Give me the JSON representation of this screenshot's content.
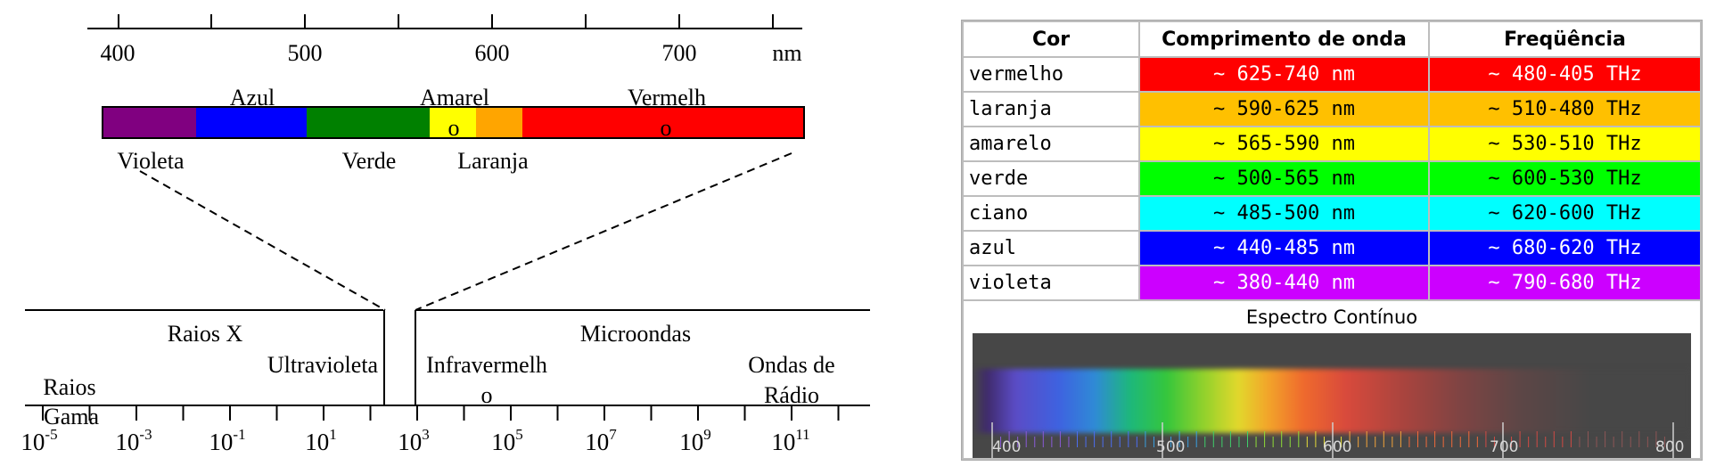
{
  "visible_scale": {
    "ticks": [
      "400",
      "500",
      "600",
      "700"
    ],
    "unit": "nm"
  },
  "color_bar": {
    "top_labels": {
      "azul": "Azul",
      "amarelo": "Amarel",
      "vermelho": "Vermelh"
    },
    "inner_labels": {
      "amarelo_o": "o",
      "vermelho_o": "o"
    },
    "bottom_labels": {
      "violeta": "Violeta",
      "verde": "Verde",
      "laranja": "Laranja"
    },
    "segments": [
      {
        "name": "violeta",
        "color": "#800080"
      },
      {
        "name": "azul",
        "color": "#0000ff"
      },
      {
        "name": "verde",
        "color": "#008000"
      },
      {
        "name": "amarelo",
        "color": "#ffff00"
      },
      {
        "name": "laranja",
        "color": "#ffa500"
      },
      {
        "name": "vermelho",
        "color": "#ff0000"
      }
    ]
  },
  "em_spectrum": {
    "regions": {
      "raios_x": "Raios X",
      "ultravioleta": "Ultravioleta",
      "infravermelho_1": "Infravermelh",
      "infravermelho_2": "o",
      "microondas": "Microondas",
      "ondas_radio_1": "Ondas de",
      "ondas_radio_2": "Rádio",
      "raios_gama_1": "Raios",
      "raios_gama_2": "Gama"
    },
    "axis_ticks": [
      {
        "base": "10",
        "exp": "-5"
      },
      {
        "base": "10",
        "exp": "-3"
      },
      {
        "base": "10",
        "exp": "-1"
      },
      {
        "base": "10",
        "exp": "1"
      },
      {
        "base": "10",
        "exp": "3"
      },
      {
        "base": "10",
        "exp": "5"
      },
      {
        "base": "10",
        "exp": "7"
      },
      {
        "base": "10",
        "exp": "9"
      },
      {
        "base": "10",
        "exp": "11"
      }
    ]
  },
  "table": {
    "headers": [
      "Cor",
      "Comprimento de onda",
      "Freqüência"
    ],
    "rows": [
      {
        "name": "vermelho",
        "wavelength": "~ 625-740 nm",
        "frequency": "~ 480-405 THz",
        "color": "#ff0000",
        "dark_text": false
      },
      {
        "name": "laranja",
        "wavelength": "~ 590-625 nm",
        "frequency": "~ 510-480 THz",
        "color": "#ffc000",
        "dark_text": true
      },
      {
        "name": "amarelo",
        "wavelength": "~ 565-590 nm",
        "frequency": "~ 530-510 THz",
        "color": "#ffff00",
        "dark_text": true
      },
      {
        "name": "verde",
        "wavelength": "~ 500-565 nm",
        "frequency": "~ 600-530 THz",
        "color": "#00ff00",
        "dark_text": true
      },
      {
        "name": "ciano",
        "wavelength": "~ 485-500 nm",
        "frequency": "~ 620-600 THz",
        "color": "#00ffff",
        "dark_text": true
      },
      {
        "name": "azul",
        "wavelength": "~ 440-485 nm",
        "frequency": "~ 680-620 THz",
        "color": "#0000ff",
        "dark_text": false
      },
      {
        "name": "violeta",
        "wavelength": "~ 380-440 nm",
        "frequency": "~ 790-680 THz",
        "color": "#cc00ff",
        "dark_text": false
      }
    ],
    "spectrum": {
      "title": "Espectro Contínuo",
      "labels": [
        "400",
        "500",
        "600",
        "700",
        "800"
      ]
    }
  }
}
